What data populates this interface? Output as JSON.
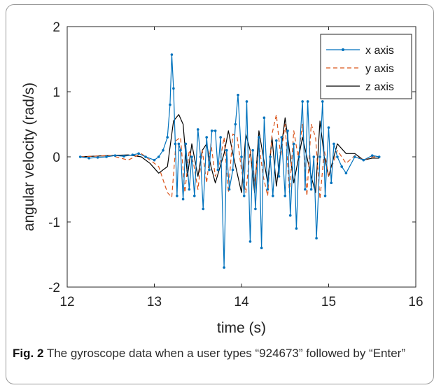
{
  "caption": {
    "lead": "Fig. 2",
    "text": "The gyroscope data when a user types “924673” followed by “Enter”"
  },
  "chart_data": {
    "type": "line",
    "xlabel": "time (s)",
    "ylabel": "angular velocity (rad/s)",
    "xlim": [
      12,
      16
    ],
    "ylim": [
      -2,
      2
    ],
    "xticks": [
      12,
      13,
      14,
      15,
      16
    ],
    "yticks": [
      -2,
      -1,
      0,
      1,
      2
    ],
    "xtick_labels": [
      "12",
      "13",
      "14",
      "15",
      "16"
    ],
    "ytick_labels": [
      "-2",
      "-1",
      "0",
      "1",
      "2"
    ],
    "grid": false,
    "legend_position": "top-right",
    "series": [
      {
        "name": "x axis",
        "color": "#0072BD",
        "style": "line-with-dot-markers",
        "x": [
          12.15,
          12.25,
          12.35,
          12.45,
          12.55,
          12.65,
          12.75,
          12.82,
          12.9,
          13.0,
          13.05,
          13.1,
          13.15,
          13.18,
          13.2,
          13.22,
          13.24,
          13.26,
          13.28,
          13.3,
          13.33,
          13.36,
          13.4,
          13.43,
          13.46,
          13.5,
          13.53,
          13.56,
          13.6,
          13.63,
          13.66,
          13.7,
          13.73,
          13.76,
          13.8,
          13.83,
          13.86,
          13.9,
          13.93,
          13.96,
          14.0,
          14.03,
          14.06,
          14.1,
          14.13,
          14.16,
          14.2,
          14.23,
          14.26,
          14.3,
          14.33,
          14.36,
          14.4,
          14.43,
          14.46,
          14.5,
          14.53,
          14.56,
          14.6,
          14.63,
          14.66,
          14.7,
          14.73,
          14.76,
          14.8,
          14.83,
          14.86,
          14.9,
          14.93,
          14.96,
          15.0,
          15.03,
          15.06,
          15.1,
          15.15,
          15.2,
          15.3,
          15.4,
          15.5,
          15.58
        ],
        "y": [
          0.0,
          -0.02,
          -0.01,
          0.0,
          0.02,
          0.01,
          0.03,
          0.05,
          0.0,
          -0.05,
          0.0,
          0.1,
          0.3,
          0.8,
          1.57,
          1.05,
          0.2,
          -0.6,
          0.2,
          0.1,
          -0.65,
          0.2,
          -0.5,
          0.0,
          -0.6,
          0.42,
          0.0,
          -0.8,
          0.3,
          -0.2,
          0.4,
          0.4,
          -0.2,
          0.3,
          -1.7,
          0.1,
          -0.5,
          -0.2,
          0.5,
          0.95,
          0.0,
          -0.6,
          0.85,
          -1.3,
          0.1,
          -0.8,
          0.3,
          -1.4,
          0.6,
          -0.5,
          0.0,
          -0.6,
          0.25,
          -0.3,
          0.3,
          -0.6,
          0.4,
          -0.9,
          0.2,
          -1.1,
          0.0,
          0.85,
          -0.5,
          0.85,
          -0.5,
          0.0,
          -1.25,
          0.0,
          0.85,
          -0.6,
          0.45,
          -0.4,
          0.2,
          0.0,
          -0.15,
          -0.25,
          0.0,
          -0.05,
          0.02,
          0.0
        ]
      },
      {
        "name": "y axis",
        "color": "#D95319",
        "style": "dashed",
        "x": [
          12.15,
          12.3,
          12.5,
          12.7,
          12.85,
          12.95,
          13.05,
          13.1,
          13.15,
          13.2,
          13.25,
          13.3,
          13.35,
          13.4,
          13.45,
          13.5,
          13.55,
          13.6,
          13.65,
          13.7,
          13.75,
          13.8,
          13.85,
          13.9,
          13.95,
          14.0,
          14.05,
          14.1,
          14.15,
          14.2,
          14.25,
          14.3,
          14.35,
          14.4,
          14.45,
          14.5,
          14.55,
          14.6,
          14.65,
          14.7,
          14.75,
          14.8,
          14.85,
          14.9,
          14.95,
          15.0,
          15.1,
          15.2,
          15.3,
          15.4,
          15.5,
          15.58
        ],
        "y": [
          0.0,
          0.01,
          0.02,
          -0.05,
          0.05,
          -0.05,
          -0.15,
          -0.35,
          -0.55,
          -0.62,
          0.25,
          0.3,
          -0.55,
          0.1,
          -0.1,
          -0.5,
          0.1,
          -0.4,
          0.2,
          -0.3,
          -0.1,
          0.3,
          -0.55,
          0.35,
          0.3,
          -0.2,
          -0.55,
          0.1,
          -0.4,
          0.2,
          -0.3,
          -0.6,
          0.35,
          0.65,
          0.0,
          0.5,
          -0.55,
          0.4,
          0.0,
          0.5,
          -0.6,
          0.5,
          0.3,
          -0.65,
          0.1,
          -0.3,
          0.1,
          -0.1,
          0.02,
          -0.05,
          0.0,
          0.0
        ]
      },
      {
        "name": "z axis",
        "color": "#000000",
        "style": "solid",
        "x": [
          12.15,
          12.3,
          12.5,
          12.7,
          12.85,
          12.95,
          13.05,
          13.15,
          13.22,
          13.28,
          13.33,
          13.38,
          13.43,
          13.5,
          13.55,
          13.6,
          13.65,
          13.7,
          13.8,
          13.85,
          13.9,
          14.0,
          14.05,
          14.1,
          14.15,
          14.2,
          14.3,
          14.35,
          14.4,
          14.5,
          14.55,
          14.6,
          14.7,
          14.75,
          14.8,
          14.85,
          14.9,
          14.95,
          15.0,
          15.1,
          15.2,
          15.3,
          15.4,
          15.5,
          15.58
        ],
        "y": [
          0.0,
          0.01,
          0.02,
          0.03,
          0.0,
          -0.1,
          -0.25,
          -0.15,
          0.55,
          0.65,
          0.5,
          -0.3,
          0.2,
          -0.3,
          0.1,
          0.2,
          -0.15,
          -0.4,
          0.05,
          0.4,
          0.05,
          -0.55,
          0.35,
          0.1,
          -0.55,
          0.4,
          -0.4,
          0.3,
          -0.45,
          0.6,
          0.1,
          -0.4,
          0.3,
          0.0,
          -0.3,
          -0.55,
          0.55,
          0.0,
          -0.3,
          0.2,
          0.05,
          0.05,
          -0.05,
          -0.02,
          -0.02
        ]
      }
    ]
  }
}
